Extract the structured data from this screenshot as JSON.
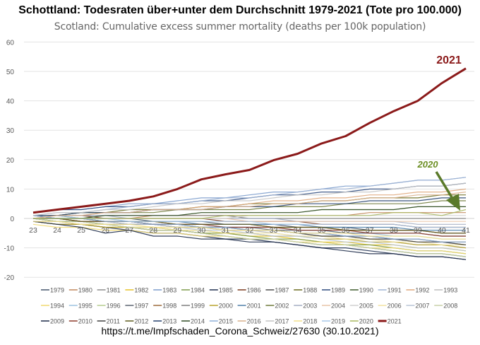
{
  "title": "Schottland: Todesraten über+unter dem Durchschnitt 1979-2021 (Tote pro 100.000)",
  "subtitle": "Scotland: Cumulative excess summer mortality (deaths per 100k population)",
  "source": "https://t.me/Impfschaden_Corona_Schweiz/27630 (30.10.2021)",
  "chart_data": {
    "type": "line",
    "title": "Schottland: Todesraten über+unter dem Durchschnitt 1979-2021 (Tote pro 100.000)",
    "subtitle": "Scotland: Cumulative excess summer mortality (deaths per 100k population)",
    "xlabel": "",
    "ylabel": "",
    "x": [
      23,
      24,
      25,
      26,
      27,
      28,
      29,
      30,
      31,
      32,
      33,
      34,
      35,
      36,
      37,
      38,
      39,
      40,
      41
    ],
    "ylim": [
      -20,
      60
    ],
    "yticks": [
      60,
      50,
      40,
      30,
      20,
      10,
      0,
      -10,
      -20
    ],
    "grid": true,
    "legend": "bottom",
    "annotations": [
      {
        "text": "2021",
        "color": "#8b1a1a"
      },
      {
        "text": "2020",
        "color": "#6b8e23",
        "arrow": true
      }
    ],
    "series": [
      {
        "name": "1979",
        "color": "#44546a",
        "values": [
          1,
          1,
          0,
          0,
          0,
          -1,
          -1,
          -1,
          -2,
          -2,
          -2,
          -3,
          -3,
          -3,
          -4,
          -4,
          -4,
          -5,
          -5
        ]
      },
      {
        "name": "1980",
        "color": "#c0875a",
        "values": [
          0,
          0,
          0,
          0,
          0,
          1,
          1,
          1,
          1,
          1,
          1,
          1,
          1,
          1,
          2,
          2,
          2,
          2,
          2
        ]
      },
      {
        "name": "1981",
        "color": "#8c8c8c",
        "values": [
          1,
          0,
          0,
          -1,
          -1,
          -2,
          -2,
          -3,
          -3,
          -4,
          -4,
          -5,
          -6,
          -6,
          -7,
          -7,
          -8,
          -8,
          -9
        ]
      },
      {
        "name": "1982",
        "color": "#e6c229",
        "values": [
          -1,
          -2,
          -2,
          -3,
          -3,
          -4,
          -4,
          -5,
          -5,
          -6,
          -6,
          -7,
          -8,
          -8,
          -9,
          -9,
          -10,
          -10,
          -11
        ]
      },
      {
        "name": "1983",
        "color": "#7b9ccc",
        "values": [
          2,
          3,
          3,
          4,
          5,
          5,
          6,
          7,
          7,
          8,
          9,
          9,
          10,
          11,
          11,
          12,
          13,
          13,
          14
        ]
      },
      {
        "name": "1984",
        "color": "#7d9a4a",
        "values": [
          0,
          -1,
          -1,
          -2,
          -3,
          -3,
          -4,
          -5,
          -5,
          -6,
          -7,
          -7,
          -8,
          -9,
          -9,
          -10,
          -11,
          -11,
          -12
        ]
      },
      {
        "name": "1985",
        "color": "#1f2f4f",
        "values": [
          -1,
          -2,
          -2,
          -3,
          -4,
          -5,
          -5,
          -6,
          -7,
          -7,
          -8,
          -9,
          -10,
          -10,
          -11,
          -12,
          -13,
          -13,
          -14
        ]
      },
      {
        "name": "1986",
        "color": "#7a3b1e",
        "values": [
          1,
          1,
          1,
          0,
          0,
          0,
          0,
          0,
          -1,
          -1,
          -1,
          -1,
          -2,
          -2,
          -2,
          -2,
          -3,
          -3,
          -3
        ]
      },
      {
        "name": "1987",
        "color": "#4d4d4d",
        "values": [
          0,
          0,
          -1,
          -1,
          -2,
          -2,
          -3,
          -3,
          -4,
          -4,
          -4,
          -5,
          -5,
          -6,
          -6,
          -7,
          -7,
          -8,
          -8
        ]
      },
      {
        "name": "1988",
        "color": "#6b6b1f",
        "values": [
          1,
          1,
          2,
          2,
          3,
          3,
          3,
          4,
          4,
          5,
          5,
          5,
          6,
          6,
          7,
          7,
          7,
          8,
          8
        ]
      },
      {
        "name": "1989",
        "color": "#2e4a7d",
        "values": [
          2,
          3,
          3,
          4,
          4,
          5,
          5,
          6,
          6,
          7,
          8,
          8,
          9,
          9,
          10,
          10,
          11,
          11,
          12
        ]
      },
      {
        "name": "1990",
        "color": "#3d5a2a",
        "values": [
          0,
          -1,
          -1,
          -2,
          -3,
          -4,
          -4,
          -5,
          -6,
          -7,
          -7,
          -8,
          -9,
          -9,
          -10,
          -11,
          -12,
          -12,
          -13
        ]
      },
      {
        "name": "1991",
        "color": "#9fb4d4",
        "values": [
          1,
          2,
          2,
          3,
          4,
          5,
          5,
          6,
          7,
          7,
          8,
          9,
          10,
          10,
          11,
          12,
          13,
          13,
          14
        ]
      },
      {
        "name": "1992",
        "color": "#e0a87c",
        "values": [
          0,
          1,
          1,
          2,
          2,
          3,
          3,
          4,
          4,
          5,
          6,
          6,
          7,
          7,
          8,
          8,
          9,
          9,
          10
        ]
      },
      {
        "name": "1993",
        "color": "#bdbdbd",
        "values": [
          1,
          0,
          0,
          -1,
          -1,
          -2,
          -3,
          -3,
          -4,
          -4,
          -5,
          -6,
          -6,
          -7,
          -7,
          -8,
          -9,
          -9,
          -10
        ]
      },
      {
        "name": "1994",
        "color": "#f0d870",
        "values": [
          -2,
          -3,
          -3,
          -4,
          -4,
          -5,
          -5,
          -6,
          -6,
          -7,
          -7,
          -8,
          -8,
          -9,
          -10,
          -10,
          -11,
          -11,
          -12
        ]
      },
      {
        "name": "1995",
        "color": "#9cc3e0",
        "values": [
          1,
          1,
          0,
          0,
          -1,
          -1,
          -2,
          -2,
          -3,
          -3,
          -3,
          -4,
          -4,
          -5,
          -5,
          -6,
          -6,
          -7,
          -7
        ]
      },
      {
        "name": "1996",
        "color": "#b5cc8e",
        "values": [
          0,
          0,
          0,
          1,
          1,
          1,
          1,
          2,
          2,
          2,
          2,
          2,
          3,
          3,
          3,
          3,
          4,
          4,
          4
        ]
      },
      {
        "name": "1997",
        "color": "#5a6270",
        "values": [
          -1,
          -1,
          -2,
          -2,
          -2,
          -2,
          -3,
          -3,
          -3,
          -3,
          -4,
          -4,
          -4,
          -5,
          -5,
          -5,
          -5,
          -6,
          -6
        ]
      },
      {
        "name": "1998",
        "color": "#9c6b3a",
        "values": [
          0,
          0,
          -1,
          -1,
          -1,
          -1,
          -2,
          -2,
          -2,
          -2,
          -3,
          -3,
          -3,
          -4,
          -4,
          -4,
          -4,
          -5,
          -5
        ]
      },
      {
        "name": "1999",
        "color": "#7f7f7f",
        "values": [
          1,
          1,
          1,
          1,
          1,
          1,
          1,
          1,
          1,
          0,
          0,
          0,
          0,
          0,
          0,
          0,
          0,
          0,
          0
        ]
      },
      {
        "name": "2000",
        "color": "#b8a22c",
        "values": [
          -1,
          -2,
          -2,
          -3,
          -3,
          -3,
          -4,
          -4,
          -5,
          -5,
          -6,
          -6,
          -7,
          -7,
          -8,
          -8,
          -9,
          -9,
          -10
        ]
      },
      {
        "name": "2001",
        "color": "#4f7fa8",
        "values": [
          0,
          0,
          0,
          -1,
          -1,
          -1,
          -1,
          -2,
          -2,
          -2,
          -2,
          -2,
          -3,
          -3,
          -3,
          -3,
          -4,
          -4,
          -4
        ]
      },
      {
        "name": "2002",
        "color": "#6f7a3a",
        "values": [
          1,
          1,
          2,
          2,
          2,
          2,
          3,
          3,
          3,
          3,
          4,
          4,
          4,
          5,
          5,
          5,
          5,
          6,
          6
        ]
      },
      {
        "name": "2003",
        "color": "#a3adc2",
        "values": [
          1,
          1,
          1,
          1,
          0,
          0,
          0,
          0,
          0,
          0,
          0,
          -1,
          -1,
          -1,
          -1,
          -1,
          -2,
          -2,
          -2
        ]
      },
      {
        "name": "2004",
        "color": "#e8c4a8",
        "values": [
          0,
          0,
          0,
          0,
          0,
          0,
          0,
          0,
          0,
          -1,
          -1,
          -1,
          -1,
          -1,
          -1,
          -1,
          -1,
          -1,
          -1
        ]
      },
      {
        "name": "2005",
        "color": "#d0d0d0",
        "values": [
          0,
          0,
          0,
          0,
          0,
          0,
          0,
          0,
          0,
          1,
          1,
          1,
          1,
          1,
          1,
          1,
          1,
          1,
          1
        ]
      },
      {
        "name": "2006",
        "color": "#f2e3a0",
        "values": [
          -1,
          -1,
          -2,
          -2,
          -3,
          -3,
          -4,
          -4,
          -5,
          -5,
          -5,
          -6,
          -6,
          -7,
          -7,
          -8,
          -8,
          -9,
          -9
        ]
      },
      {
        "name": "2007",
        "color": "#b8c4d6",
        "values": [
          1,
          0,
          0,
          -1,
          -2,
          -2,
          -3,
          -4,
          -4,
          -5,
          -6,
          -6,
          -7,
          -8,
          -8,
          -9,
          -10,
          -10,
          -11
        ]
      },
      {
        "name": "2008",
        "color": "#c8d0a8",
        "values": [
          0,
          -1,
          -1,
          -2,
          -3,
          -4,
          -4,
          -5,
          -6,
          -7,
          -7,
          -8,
          -9,
          -9,
          -10,
          -11,
          -12,
          -12,
          -13
        ]
      },
      {
        "name": "2009",
        "color": "#1c2a48",
        "values": [
          -1,
          -2,
          -3,
          -5,
          -4,
          -6,
          -6,
          -7,
          -7,
          -8,
          -8,
          -9,
          -10,
          -11,
          -12,
          -12,
          -13,
          -13,
          -14
        ]
      },
      {
        "name": "2010",
        "color": "#8e3b2a",
        "values": [
          0,
          0,
          -1,
          -1,
          -1,
          -2,
          -2,
          -2,
          -3,
          -3,
          -3,
          -4,
          -4,
          -4,
          -5,
          -5,
          -5,
          -6,
          -6
        ]
      },
      {
        "name": "2011",
        "color": "#3f3f3f",
        "values": [
          1,
          0,
          0,
          -1,
          -1,
          -2,
          -2,
          -3,
          -3,
          -4,
          -4,
          -5,
          -6,
          -6,
          -7,
          -7,
          -8,
          -8,
          -9
        ]
      },
      {
        "name": "2012",
        "color": "#5e5a1e",
        "values": [
          0,
          0,
          -1,
          -1,
          -1,
          -1,
          -2,
          -2,
          -2,
          -2,
          -3,
          -3,
          -3,
          -4,
          -4,
          -4,
          -4,
          -5,
          -5
        ]
      },
      {
        "name": "2013",
        "color": "#24406e",
        "values": [
          1,
          1,
          2,
          2,
          2,
          3,
          3,
          3,
          4,
          4,
          4,
          5,
          5,
          5,
          6,
          6,
          6,
          7,
          7
        ]
      },
      {
        "name": "2014",
        "color": "#2f4a26",
        "values": [
          0,
          0,
          0,
          1,
          1,
          1,
          1,
          2,
          2,
          2,
          2,
          2,
          3,
          3,
          3,
          3,
          4,
          4,
          4
        ]
      },
      {
        "name": "2015",
        "color": "#8fb0d8",
        "values": [
          1,
          0,
          0,
          -1,
          -1,
          -2,
          -2,
          -3,
          -3,
          -4,
          -4,
          -5,
          -5,
          -6,
          -6,
          -7,
          -7,
          -8,
          -8
        ]
      },
      {
        "name": "2016",
        "color": "#d9b08c",
        "values": [
          0,
          1,
          1,
          2,
          2,
          3,
          3,
          3,
          4,
          4,
          5,
          5,
          6,
          6,
          7,
          7,
          8,
          8,
          9
        ]
      },
      {
        "name": "2017",
        "color": "#c4c4c4",
        "values": [
          1,
          2,
          2,
          3,
          3,
          4,
          5,
          5,
          6,
          6,
          7,
          8,
          8,
          9,
          9,
          10,
          11,
          11,
          12
        ]
      },
      {
        "name": "2018",
        "color": "#f3e08a",
        "values": [
          -1,
          -1,
          -2,
          -2,
          -2,
          -3,
          -3,
          -3,
          -4,
          -4,
          -4,
          -5,
          -5,
          -5,
          -6,
          -6,
          -6,
          -7,
          -7
        ]
      },
      {
        "name": "2019",
        "color": "#a8c8e8",
        "values": [
          0,
          0,
          0,
          0,
          -1,
          -1,
          -1,
          -1,
          -1,
          -1,
          -2,
          -2,
          -2,
          -2,
          -2,
          -2,
          -3,
          -3,
          -3
        ]
      },
      {
        "name": "2020",
        "color": "#a8b860",
        "values": [
          0,
          0,
          0,
          0,
          0,
          0,
          0,
          0,
          1,
          1,
          1,
          1,
          1,
          1,
          1,
          2,
          2,
          1,
          3
        ]
      },
      {
        "name": "2021",
        "color": "#8b1a1a",
        "values": [
          2,
          3,
          4,
          5,
          6,
          7.5,
          10,
          13.3,
          15,
          16.5,
          19.8,
          22,
          25.5,
          28,
          32.5,
          36.5,
          40,
          46,
          51
        ]
      }
    ]
  }
}
